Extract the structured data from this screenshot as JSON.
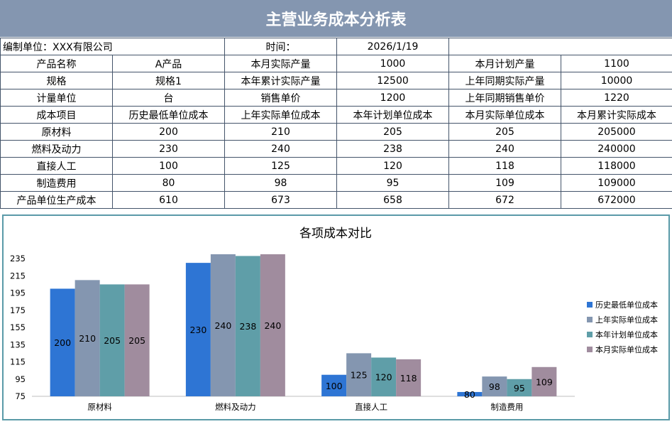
{
  "title": "主营业务成本分析表",
  "header": {
    "unit_label": "编制单位：XXX有限公司",
    "time_label": "时间：",
    "date": "2026/1/19"
  },
  "info_rows": [
    [
      "产品名称",
      "A产品",
      "本月实际产量",
      "1000",
      "本月计划产量",
      "1100"
    ],
    [
      "规格",
      "规格1",
      "本年累计实际产量",
      "12500",
      "上年同期实际产量",
      "10000"
    ],
    [
      "计量单位",
      "台",
      "销售单价",
      "1200",
      "上年同期销售单价",
      "1220"
    ]
  ],
  "cost_table": {
    "columns": [
      "成本项目",
      "历史最低单位成本",
      "上年实际单位成本",
      "本年计划单位成本",
      "本月实际单位成本",
      "本月累计实际成本"
    ],
    "rows": [
      [
        "原材料",
        "200",
        "210",
        "205",
        "205",
        "205000"
      ],
      [
        "燃料及动力",
        "230",
        "240",
        "238",
        "240",
        "240000"
      ],
      [
        "直接人工",
        "100",
        "125",
        "120",
        "118",
        "118000"
      ],
      [
        "制造费用",
        "80",
        "98",
        "95",
        "109",
        "109000"
      ],
      [
        "产品单位生产成本",
        "610",
        "673",
        "658",
        "672",
        "672000"
      ]
    ]
  },
  "chart_data": {
    "type": "bar",
    "title": "各项成本对比",
    "categories": [
      "原材料",
      "燃料及动力",
      "直接人工",
      "制造费用"
    ],
    "series": [
      {
        "name": "历史最低单位成本",
        "values": [
          200,
          230,
          100,
          80
        ],
        "color": "#2e75d4"
      },
      {
        "name": "上年实际单位成本",
        "values": [
          210,
          240,
          125,
          98
        ],
        "color": "#8496b0"
      },
      {
        "name": "本年计划单位成本",
        "values": [
          205,
          238,
          120,
          95
        ],
        "color": "#5f9ea8"
      },
      {
        "name": "本月实际单位成本",
        "values": [
          205,
          240,
          118,
          109
        ],
        "color": "#a08c9e"
      }
    ],
    "ylim": [
      75,
      240
    ],
    "yticks": [
      75,
      95,
      115,
      135,
      155,
      175,
      195,
      215,
      235
    ],
    "legend": "right",
    "grid": false
  }
}
